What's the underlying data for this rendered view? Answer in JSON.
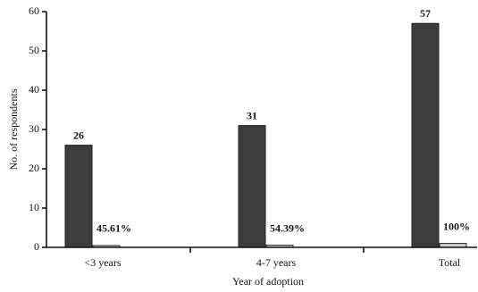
{
  "chart_data": {
    "type": "bar",
    "x_label": "Year of adoption",
    "y_label": "No. of respondents",
    "categories": [
      "<3 years",
      "4-7 years",
      "Total"
    ],
    "series": [
      {
        "color": "#3c3c3c",
        "values": [
          26,
          31,
          57
        ]
      },
      {
        "color": "#cfcfcf",
        "values": [
          0.4561,
          0.5439,
          1
        ],
        "value_labels": [
          "45.61%",
          "54.39%",
          "100%"
        ]
      }
    ],
    "ylim": [
      0,
      60
    ],
    "yticks": [
      0,
      10,
      20,
      30,
      40,
      50,
      60
    ]
  }
}
